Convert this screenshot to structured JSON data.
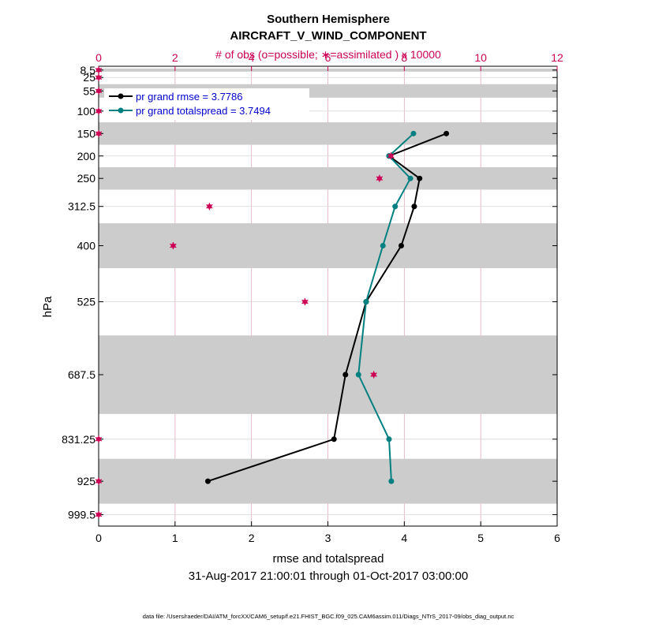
{
  "chart_data": {
    "type": "line",
    "title": "Southern Hemisphere",
    "subtitle": "AIRCRAFT_V_WIND_COMPONENT",
    "top_axis_label": "# of obs (o=possible; ∗=assimilated ) x 10000",
    "xlabel": "rmse and totalspread",
    "ylabel": "hPa",
    "date_range": "31-Aug-2017 21:00:01 through 01-Oct-2017 03:00:00",
    "footer": "data file: /Users/raeder/DAI/ATM_forcXX/CAM6_setup/f.e21.FHIST_BGC.f09_025.CAM6assim.011/Diags_NTrS_2017-09/obs_diag_output.nc",
    "xlim": [
      0,
      6
    ],
    "xticks": [
      0,
      1,
      2,
      3,
      4,
      5,
      6
    ],
    "top_xlim": [
      0,
      12
    ],
    "top_xticks": [
      0,
      2,
      4,
      6,
      8,
      10,
      12
    ],
    "levels": [
      8.5,
      25,
      55,
      100,
      150,
      200,
      250,
      312.5,
      400,
      525,
      687.5,
      831.25,
      925,
      999.5
    ],
    "level_labels": [
      "8.5",
      "25",
      "55",
      "100",
      "150",
      "200",
      "250",
      "312.5",
      "400",
      "525",
      "687.5",
      "831.25",
      "925",
      "999.5"
    ],
    "ylim_hpa": [
      1025,
      0
    ],
    "shaded_layers": [
      [
        5,
        12
      ],
      [
        40,
        70
      ],
      [
        125,
        175
      ],
      [
        225,
        275
      ],
      [
        350,
        450
      ],
      [
        600,
        775
      ],
      [
        875,
        975
      ]
    ],
    "series": [
      {
        "name": "pr grand rmse = 3.7786",
        "color": "#000000",
        "levels": [
          150,
          200,
          250,
          312.5,
          400,
          525,
          687.5,
          831.25,
          925
        ],
        "values": [
          4.55,
          3.8,
          4.2,
          4.13,
          3.96,
          3.5,
          3.23,
          3.08,
          1.43
        ]
      },
      {
        "name": "pr grand totalspread = 3.7494",
        "color": "#008080",
        "levels": [
          150,
          200,
          250,
          312.5,
          400,
          525,
          687.5,
          831.25,
          925
        ],
        "values": [
          4.12,
          3.8,
          4.08,
          3.88,
          3.72,
          3.5,
          3.4,
          3.8,
          3.83
        ]
      }
    ],
    "obs_counts": {
      "color": "#cc0055",
      "levels": [
        8.5,
        25,
        55,
        100,
        150,
        200,
        250,
        312.5,
        400,
        525,
        687.5,
        831.25,
        925,
        999.5
      ],
      "possible": [
        0,
        0,
        0,
        0,
        0,
        7.65,
        7.35,
        2.9,
        1.95,
        5.4,
        7.2,
        0,
        0,
        0
      ],
      "assimilated": [
        0,
        0,
        0,
        0,
        0,
        7.65,
        7.35,
        2.9,
        1.95,
        5.4,
        7.2,
        0,
        0,
        0
      ]
    },
    "legend_position": "top-left"
  }
}
